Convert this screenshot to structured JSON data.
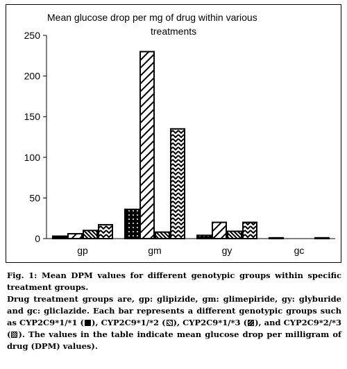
{
  "chart_data": {
    "type": "bar",
    "title": "Mean glucose drop per mg of drug within various treatments",
    "title_lines": [
      "Mean glucose drop per mg of drug within various",
      "treatments"
    ],
    "categories": [
      "gp",
      "gm",
      "gy",
      "gc"
    ],
    "series": [
      {
        "values": [
          3,
          36,
          4,
          1
        ],
        "pattern": "solid-dots"
      },
      {
        "values": [
          6,
          230,
          20,
          0
        ],
        "pattern": "diagonal"
      },
      {
        "values": [
          10,
          8,
          9,
          0
        ],
        "pattern": "dense-diagonal"
      },
      {
        "values": [
          17,
          135,
          20,
          1
        ],
        "pattern": "zigzag"
      }
    ],
    "yticks": [
      "0",
      "50",
      "100",
      "150",
      "200",
      "250"
    ],
    "ylim": [
      0,
      250
    ],
    "xlabel": "",
    "ylabel": "",
    "grid": false,
    "colors": {
      "bar_fill": "#000000",
      "bar_bg": "#ffffff",
      "axis": "#000000"
    }
  },
  "caption": {
    "title": "Fig. 1: Mean DPM values for different genotypic groups within specific treatment groups.",
    "line1": "Drug treatment groups are, gp: glipizide, gm: glimepiride, gy: glyburide and gc: gliclazide. Each bar represents a different genotypic groups such as ",
    "g1": "CYP2C9*1/*1 (",
    "g1_end": "), ",
    "g2": "CYP2C9*1/*2 (",
    "g2_end": "), ",
    "g3": "CYP2C9*1/*3 (",
    "g3_end": "),",
    "g4": " and CYP2C9*2/*3 (",
    "g4_end": "). The values in the table indicate mean glucose drop per milligram of drug (DPM) values)."
  }
}
